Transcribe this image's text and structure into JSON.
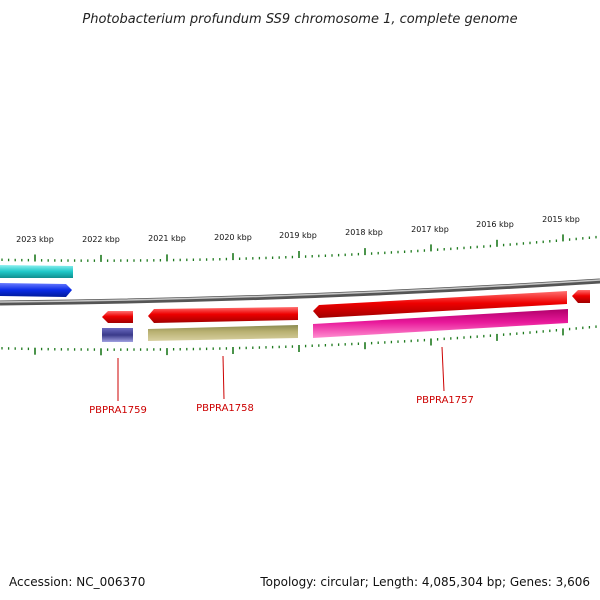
{
  "header": {
    "title": "Photobacterium profundum SS9 chromosome 1, complete genome"
  },
  "ruler": {
    "unit": "kbp",
    "labels": [
      "2023 kbp",
      "2022 kbp",
      "2021 kbp",
      "2020 kbp",
      "2019 kbp",
      "2018 kbp",
      "2017 kbp",
      "2016 kbp",
      "2015 kbp"
    ],
    "tick_color": "#1e7a1e"
  },
  "backbone": {
    "color": "#808080"
  },
  "features": [
    {
      "name": "gene-teal-upper-left",
      "color": "#1ec8c8",
      "strand": "+"
    },
    {
      "name": "gene-blue-left",
      "color": "#0a2be6",
      "strand": "+"
    },
    {
      "name": "gene-red-1759",
      "color": "#ee0000",
      "strand": "-"
    },
    {
      "name": "gene-red-1758",
      "color": "#ee0000",
      "strand": "-"
    },
    {
      "name": "gene-red-1757",
      "color": "#ee0000",
      "strand": "-"
    },
    {
      "name": "gene-red-right",
      "color": "#ee0000",
      "strand": "-"
    },
    {
      "name": "feature-navy",
      "color": "#3a3a8a"
    },
    {
      "name": "feature-olive",
      "color": "#b8b070"
    },
    {
      "name": "feature-magenta",
      "color": "#e8189a"
    }
  ],
  "gene_labels": [
    {
      "text": "PBPRA1759"
    },
    {
      "text": "PBPRA1758"
    },
    {
      "text": "PBPRA1757"
    }
  ],
  "footer": {
    "accession": "Accession: NC_006370",
    "topology": "Topology: circular; Length: 4,085,304 bp; Genes: 3,606"
  }
}
